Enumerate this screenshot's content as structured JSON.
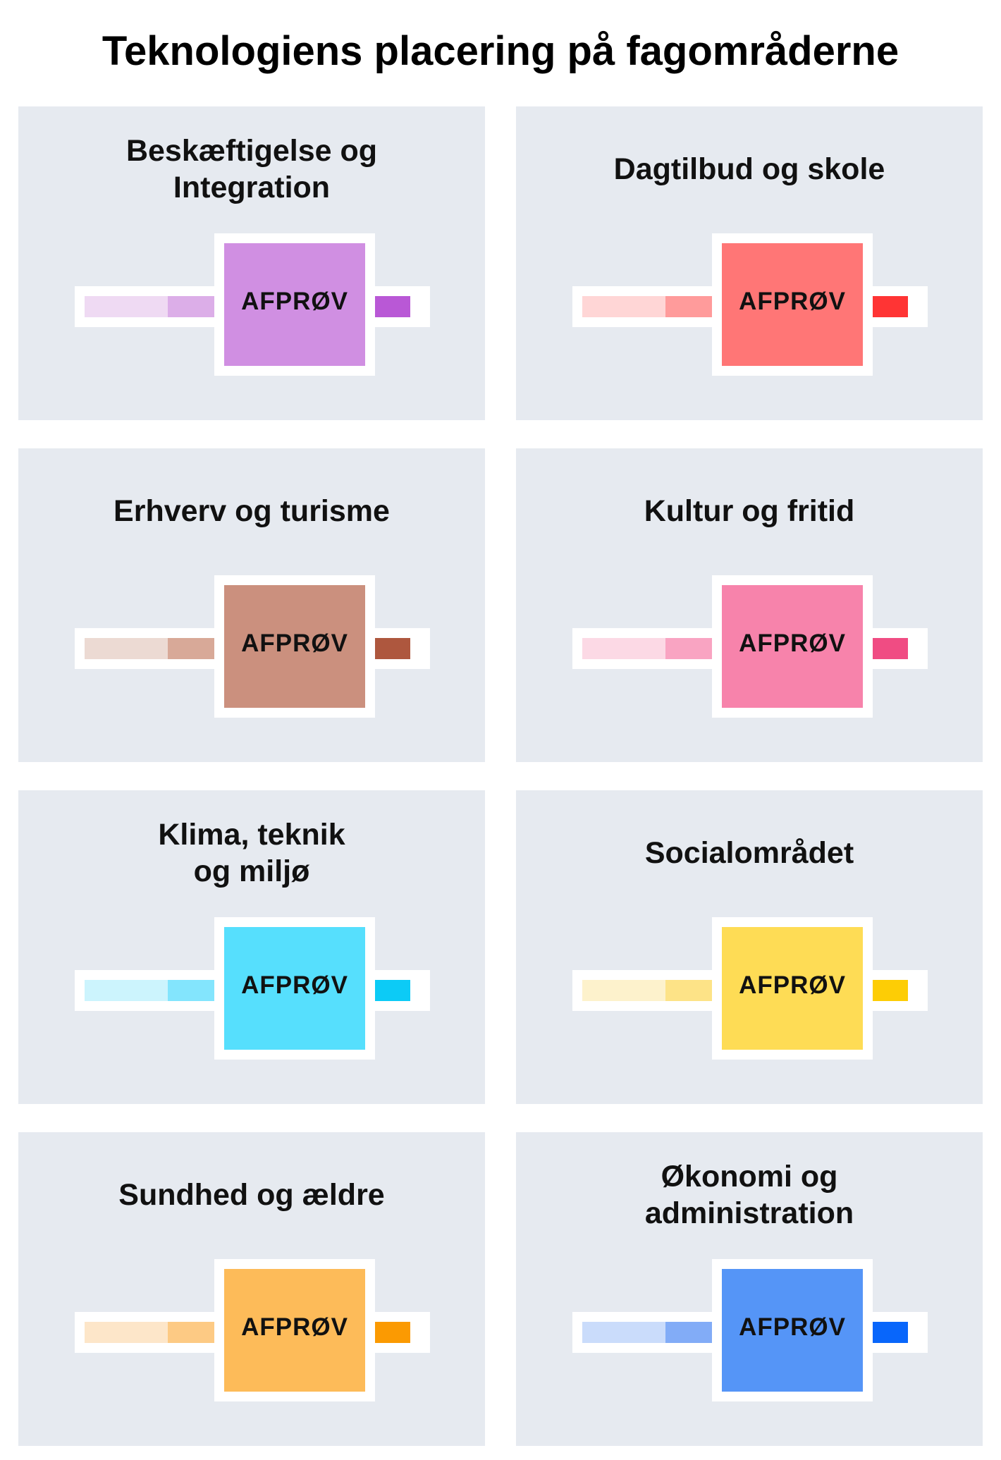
{
  "title": "Teknologiens placering på fagområderne",
  "cards": [
    {
      "title": "Beskæftigelse og\nIntegration",
      "label": "AFPRØV",
      "colors": {
        "light": "#efdaf3",
        "mid": "#dcaee8",
        "main": "#d08fe2",
        "strong": "#b958d6"
      }
    },
    {
      "title": "Dagtilbud og skole",
      "label": "AFPRØV",
      "colors": {
        "light": "#ffd6d6",
        "mid": "#ff9b9b",
        "main": "#ff7676",
        "strong": "#ff3434"
      }
    },
    {
      "title": "Erhverv og turisme",
      "label": "AFPRØV",
      "colors": {
        "light": "#ecdad3",
        "mid": "#d8a998",
        "main": "#cb907e",
        "strong": "#ae573e"
      }
    },
    {
      "title": "Kultur og fritid",
      "label": "AFPRØV",
      "colors": {
        "light": "#fcd9e5",
        "mid": "#f9a4c2",
        "main": "#f783ab",
        "strong": "#f04c83"
      }
    },
    {
      "title": "Klima, teknik\nog miljø",
      "label": "AFPRØV",
      "colors": {
        "light": "#ccf4fd",
        "mid": "#83e5fd",
        "main": "#56dffd",
        "strong": "#0ccbf6"
      }
    },
    {
      "title": "Socialområdet",
      "label": "AFPRØV",
      "colors": {
        "light": "#fdf2cc",
        "mid": "#fde387",
        "main": "#fedc55",
        "strong": "#fdcd05"
      }
    },
    {
      "title": "Sundhed og ældre",
      "label": "AFPRØV",
      "colors": {
        "light": "#fde6c9",
        "mid": "#fdca84",
        "main": "#fdbb59",
        "strong": "#fb9a02"
      }
    },
    {
      "title": "Økonomi og\nadministration",
      "label": "AFPRØV",
      "colors": {
        "light": "#cadcfb",
        "mid": "#82acf7",
        "main": "#5595f7",
        "strong": "#0866fb"
      }
    }
  ]
}
